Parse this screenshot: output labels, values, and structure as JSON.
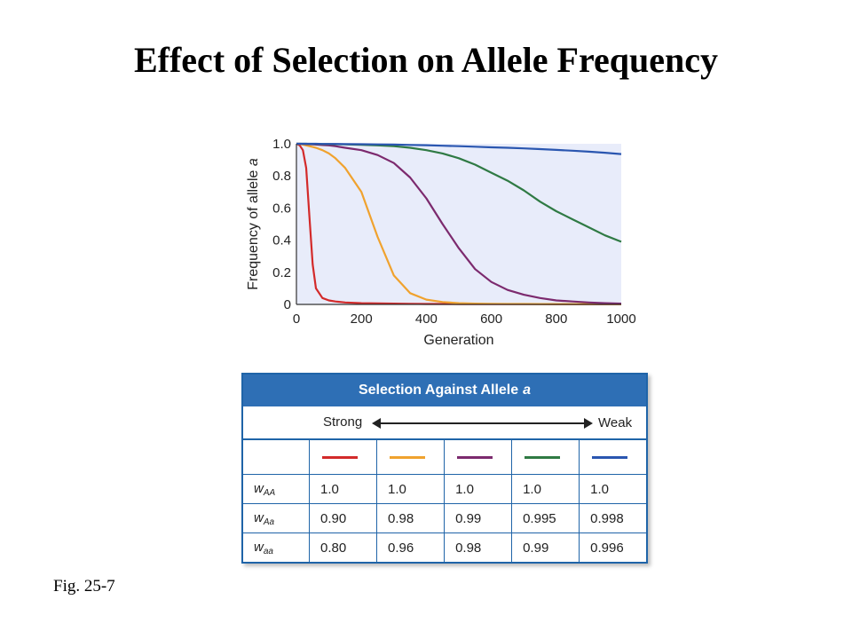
{
  "slide": {
    "title": "Effect of Selection on Allele Frequency",
    "fig_label": "Fig. 25-7"
  },
  "chart_data": {
    "type": "line",
    "xlabel": "Generation",
    "ylabel": "Frequency of allele a",
    "xlim": [
      0,
      1000
    ],
    "ylim": [
      0,
      1.0
    ],
    "x_ticks": [
      "0",
      "200",
      "400",
      "600",
      "800",
      "1000"
    ],
    "y_ticks": [
      "0",
      "0.2",
      "0.4",
      "0.6",
      "0.8",
      "1.0"
    ],
    "plot_background": "#e8ecfa",
    "grid": false,
    "x": [
      0,
      10,
      20,
      30,
      40,
      50,
      60,
      80,
      100,
      120,
      150,
      200,
      250,
      300,
      350,
      400,
      450,
      500,
      550,
      600,
      650,
      700,
      750,
      800,
      850,
      900,
      950,
      1000
    ],
    "series": [
      {
        "color": "#d32a2a",
        "values": [
          1.0,
          0.99,
          0.96,
          0.85,
          0.55,
          0.25,
          0.1,
          0.04,
          0.025,
          0.018,
          0.012,
          0.008,
          0.006,
          0.005,
          0.004,
          0.003,
          0.003,
          0.002,
          0.002,
          0.002,
          0.002,
          0.002,
          0.002,
          0.001,
          0.001,
          0.001,
          0.001,
          0.001
        ]
      },
      {
        "color": "#f0a22e",
        "values": [
          1.0,
          0.999,
          0.995,
          0.99,
          0.985,
          0.98,
          0.975,
          0.96,
          0.94,
          0.91,
          0.85,
          0.7,
          0.42,
          0.18,
          0.07,
          0.03,
          0.015,
          0.008,
          0.005,
          0.004,
          0.003,
          0.003,
          0.002,
          0.002,
          0.002,
          0.002,
          0.001,
          0.001
        ]
      },
      {
        "color": "#7c2a6e",
        "values": [
          1.0,
          1.0,
          0.999,
          0.998,
          0.997,
          0.996,
          0.995,
          0.992,
          0.99,
          0.985,
          0.975,
          0.96,
          0.93,
          0.88,
          0.79,
          0.66,
          0.5,
          0.35,
          0.22,
          0.14,
          0.09,
          0.06,
          0.04,
          0.025,
          0.018,
          0.012,
          0.008,
          0.005
        ]
      },
      {
        "color": "#2f7a44",
        "values": [
          1.0,
          1.0,
          1.0,
          1.0,
          0.999,
          0.999,
          0.999,
          0.998,
          0.998,
          0.997,
          0.996,
          0.994,
          0.99,
          0.985,
          0.975,
          0.96,
          0.94,
          0.91,
          0.87,
          0.82,
          0.77,
          0.71,
          0.64,
          0.58,
          0.53,
          0.48,
          0.43,
          0.39
        ]
      },
      {
        "color": "#2a56b0",
        "values": [
          1.0,
          1.0,
          1.0,
          1.0,
          1.0,
          1.0,
          1.0,
          0.999,
          0.999,
          0.999,
          0.998,
          0.997,
          0.996,
          0.995,
          0.993,
          0.991,
          0.988,
          0.985,
          0.982,
          0.978,
          0.975,
          0.971,
          0.967,
          0.962,
          0.957,
          0.951,
          0.944,
          0.936
        ]
      }
    ]
  },
  "selection_table": {
    "title": "Selection Against Allele",
    "title_allele": "a",
    "strong_label": "Strong",
    "weak_label": "Weak",
    "colors": [
      "#d32a2a",
      "#f0a22e",
      "#7c2a6e",
      "#2f7a44",
      "#2a56b0"
    ],
    "rows": [
      {
        "symbol": "w",
        "sub": "AA",
        "values": [
          "1.0",
          "1.0",
          "1.0",
          "1.0",
          "1.0"
        ]
      },
      {
        "symbol": "w",
        "sub": "Aa",
        "values": [
          "0.90",
          "0.98",
          "0.99",
          "0.995",
          "0.998"
        ]
      },
      {
        "symbol": "w",
        "sub": "aa",
        "values": [
          "0.80",
          "0.96",
          "0.98",
          "0.99",
          "0.996"
        ]
      }
    ]
  }
}
